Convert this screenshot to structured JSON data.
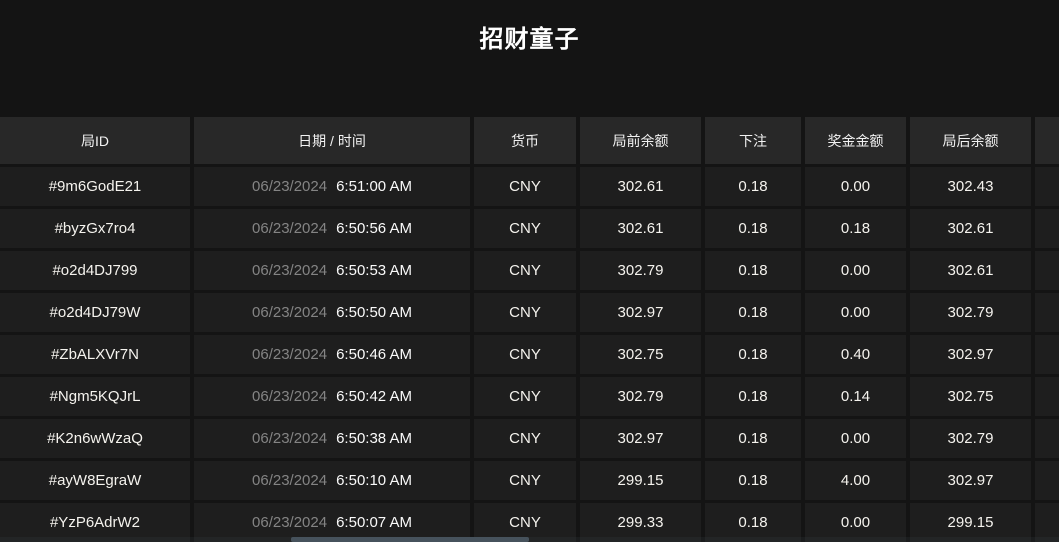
{
  "title": "招财童子",
  "colors": {
    "page_bg": "#141414",
    "header_bg": "#282828",
    "row_bg": "#1e1e1e",
    "separator": "#0c0c0c",
    "header_text": "#f2f2f2",
    "value_text": "#f5f3ee",
    "date_text": "#848484",
    "time_text": "#fafafa",
    "scrollbar_thumb": "#46525c"
  },
  "table": {
    "columns": [
      "局ID",
      "日期 / 时间",
      "货币",
      "局前余额",
      "下注",
      "奖金金额",
      "局后余额"
    ],
    "rows": [
      {
        "round_id": "#9m6GodE21",
        "date": "06/23/2024",
        "time": "6:51:00 AM",
        "currency": "CNY",
        "balance_before": "302.61",
        "bet": "0.18",
        "prize": "0.00",
        "balance_after": "302.43"
      },
      {
        "round_id": "#byzGx7ro4",
        "date": "06/23/2024",
        "time": "6:50:56 AM",
        "currency": "CNY",
        "balance_before": "302.61",
        "bet": "0.18",
        "prize": "0.18",
        "balance_after": "302.61"
      },
      {
        "round_id": "#o2d4DJ799",
        "date": "06/23/2024",
        "time": "6:50:53 AM",
        "currency": "CNY",
        "balance_before": "302.79",
        "bet": "0.18",
        "prize": "0.00",
        "balance_after": "302.61"
      },
      {
        "round_id": "#o2d4DJ79W",
        "date": "06/23/2024",
        "time": "6:50:50 AM",
        "currency": "CNY",
        "balance_before": "302.97",
        "bet": "0.18",
        "prize": "0.00",
        "balance_after": "302.79"
      },
      {
        "round_id": "#ZbALXVr7N",
        "date": "06/23/2024",
        "time": "6:50:46 AM",
        "currency": "CNY",
        "balance_before": "302.75",
        "bet": "0.18",
        "prize": "0.40",
        "balance_after": "302.97"
      },
      {
        "round_id": "#Ngm5KQJrL",
        "date": "06/23/2024",
        "time": "6:50:42 AM",
        "currency": "CNY",
        "balance_before": "302.79",
        "bet": "0.18",
        "prize": "0.14",
        "balance_after": "302.75"
      },
      {
        "round_id": "#K2n6wWzaQ",
        "date": "06/23/2024",
        "time": "6:50:38 AM",
        "currency": "CNY",
        "balance_before": "302.97",
        "bet": "0.18",
        "prize": "0.00",
        "balance_after": "302.79"
      },
      {
        "round_id": "#ayW8EgraW",
        "date": "06/23/2024",
        "time": "6:50:10 AM",
        "currency": "CNY",
        "balance_before": "299.15",
        "bet": "0.18",
        "prize": "4.00",
        "balance_after": "302.97"
      },
      {
        "round_id": "#YzP6AdrW2",
        "date": "06/23/2024",
        "time": "6:50:07 AM",
        "currency": "CNY",
        "balance_before": "299.33",
        "bet": "0.18",
        "prize": "0.00",
        "balance_after": "299.15"
      }
    ]
  }
}
